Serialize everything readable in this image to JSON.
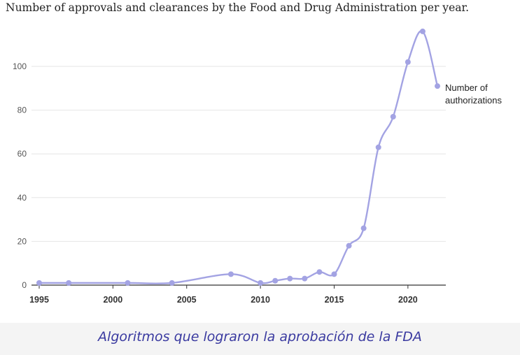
{
  "title": "Number of approvals and clearances by the Food and Drug Administration per year.",
  "caption": "Algoritmos que lograron la aprobación de la FDA",
  "colors": {
    "series": "#a3a3e3",
    "grid": "#e6e6e6",
    "axis": "#333333",
    "caption_text": "#3a3aa0",
    "caption_band": "#f4f4f4"
  },
  "chart_data": {
    "type": "line",
    "title": "Number of approvals and clearances by the Food and Drug Administration per year.",
    "xlabel": "",
    "ylabel": "",
    "xlim": [
      1995,
      2022
    ],
    "ylim": [
      0,
      115
    ],
    "x_ticks": [
      1995,
      2000,
      2005,
      2010,
      2015,
      2020
    ],
    "y_ticks": [
      0,
      20,
      40,
      60,
      80,
      100
    ],
    "grid": "horizontal",
    "legend": "right, at end of line",
    "smooth": true,
    "series": [
      {
        "name": "Number of authorizations",
        "label_lines": [
          "Number of",
          "authorizations"
        ],
        "color": "#a3a3e3",
        "x": [
          1995,
          1997,
          2001,
          2004,
          2008,
          2010,
          2011,
          2012,
          2013,
          2014,
          2015,
          2016,
          2017,
          2018,
          2019,
          2020,
          2021,
          2022
        ],
        "y": [
          1,
          1,
          1,
          1,
          5,
          1,
          2,
          3,
          3,
          6,
          5,
          18,
          26,
          63,
          77,
          102,
          116,
          91
        ]
      }
    ]
  }
}
